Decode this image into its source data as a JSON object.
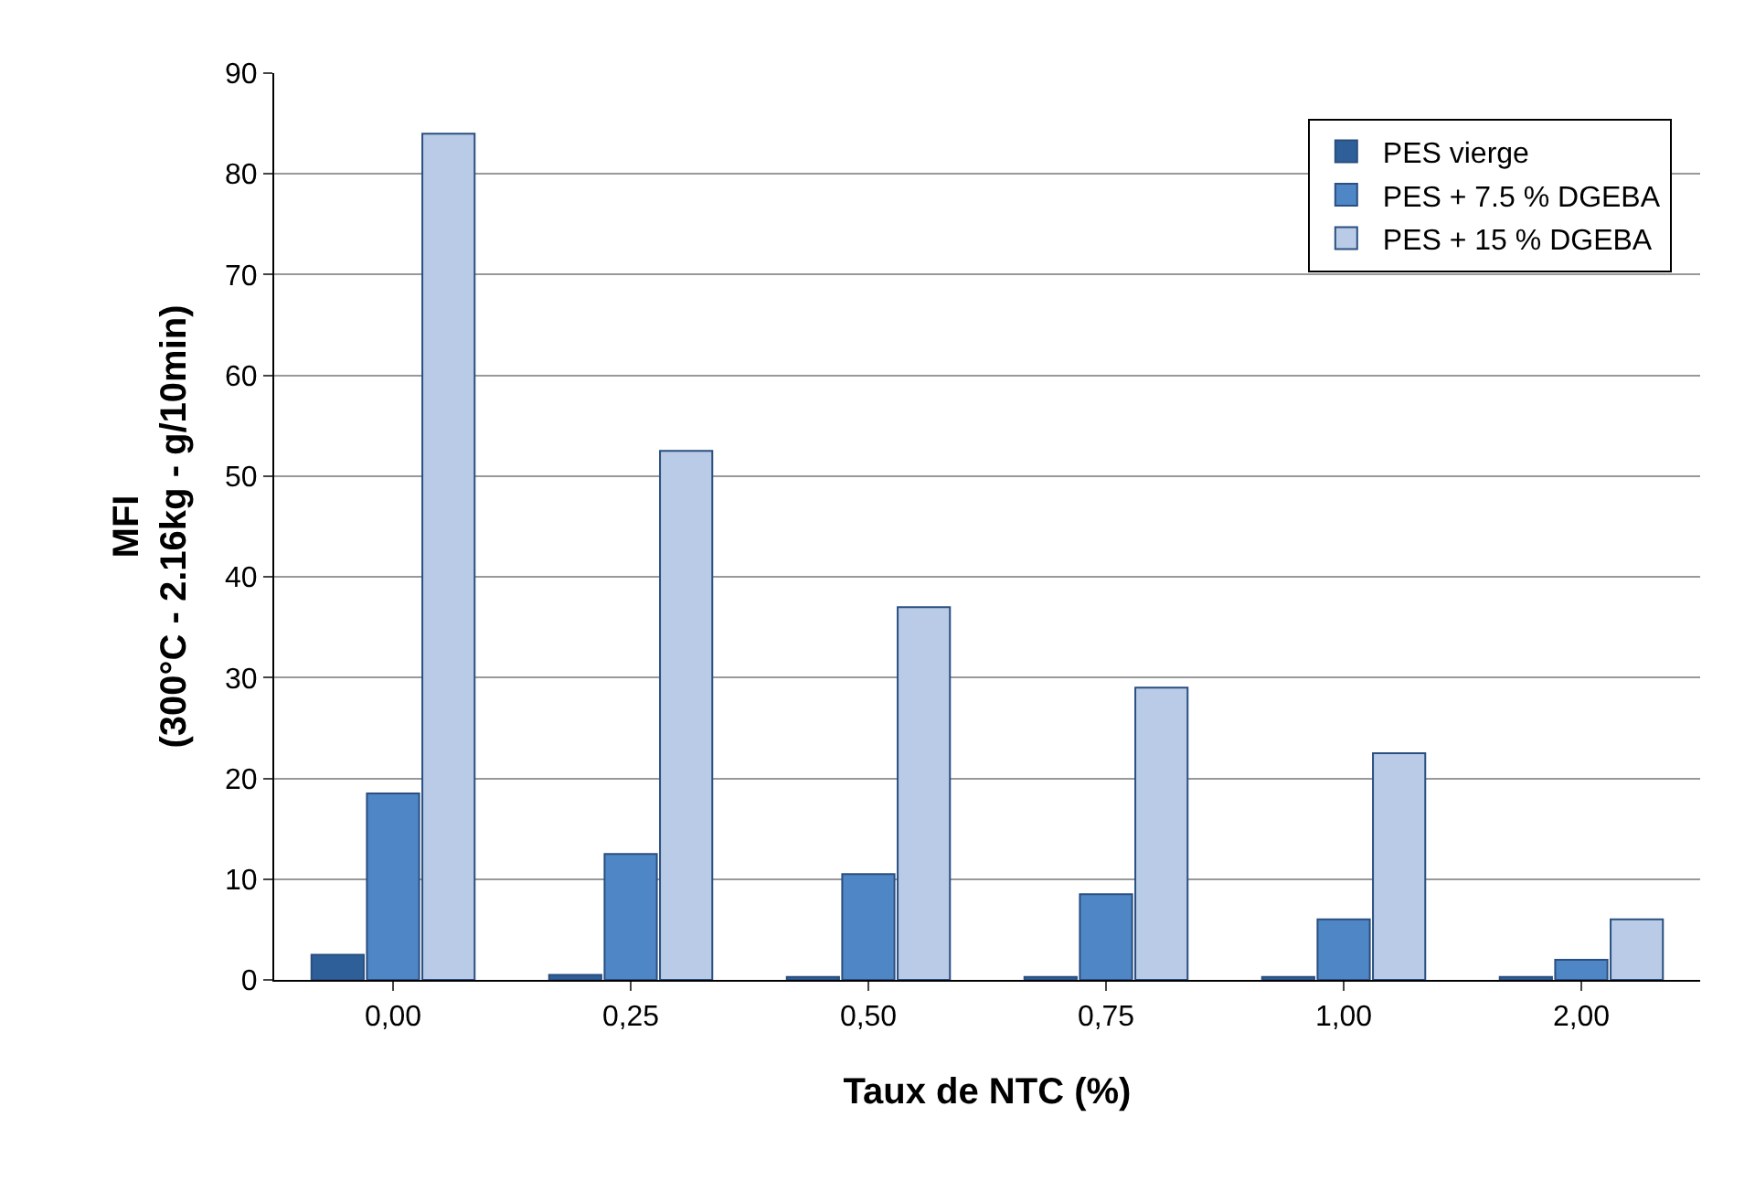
{
  "chart_data": {
    "type": "bar",
    "xlabel": "Taux de NTC (%)",
    "ylabel": "MFI\n(300°C - 2.16kg - g/10min)",
    "categories": [
      "0,00",
      "0,25",
      "0,50",
      "0,75",
      "1,00",
      "2,00"
    ],
    "series": [
      {
        "name": "PES vierge",
        "color": "#2f5f99",
        "values": [
          2.5,
          0.5,
          0.3,
          0.3,
          0.3,
          0.3
        ]
      },
      {
        "name": "PES + 7.5 % DGEBA",
        "color": "#4f86c6",
        "values": [
          18.5,
          12.5,
          10.5,
          8.5,
          6,
          2
        ]
      },
      {
        "name": "PES + 15 % DGEBA",
        "color": "#b9cbe6",
        "values": [
          84,
          52.5,
          37,
          29,
          22.5,
          6
        ]
      }
    ],
    "ylim": [
      0,
      90
    ],
    "yticks": [
      0,
      10,
      20,
      30,
      40,
      50,
      60,
      70,
      80,
      90
    ],
    "grid": "y",
    "legend": "top right"
  }
}
